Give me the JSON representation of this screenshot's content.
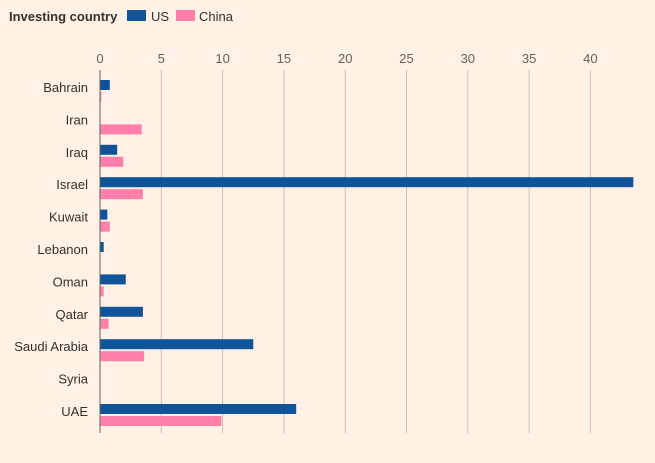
{
  "chart_data": {
    "type": "bar",
    "orientation": "horizontal",
    "legend_title": "Investing country",
    "legend_position": "top-left",
    "categories": [
      "Bahrain",
      "Iran",
      "Iraq",
      "Israel",
      "Kuwait",
      "Lebanon",
      "Oman",
      "Qatar",
      "Saudi Arabia",
      "Syria",
      "UAE"
    ],
    "series": [
      {
        "name": "US",
        "color": "#0f5499",
        "values": [
          0.8,
          0,
          1.4,
          43.5,
          0.6,
          0.3,
          2.1,
          3.5,
          12.5,
          0,
          16.0
        ]
      },
      {
        "name": "China",
        "color": "#ff7faa",
        "values": [
          0.1,
          3.4,
          1.9,
          3.5,
          0.8,
          0,
          0.3,
          0.7,
          3.6,
          0,
          9.9
        ]
      }
    ],
    "xticks": [
      0,
      5,
      10,
      15,
      20,
      25,
      30,
      35,
      40
    ],
    "xlim": [
      0,
      43.8
    ],
    "xaxis_position": "top",
    "grid": true
  }
}
